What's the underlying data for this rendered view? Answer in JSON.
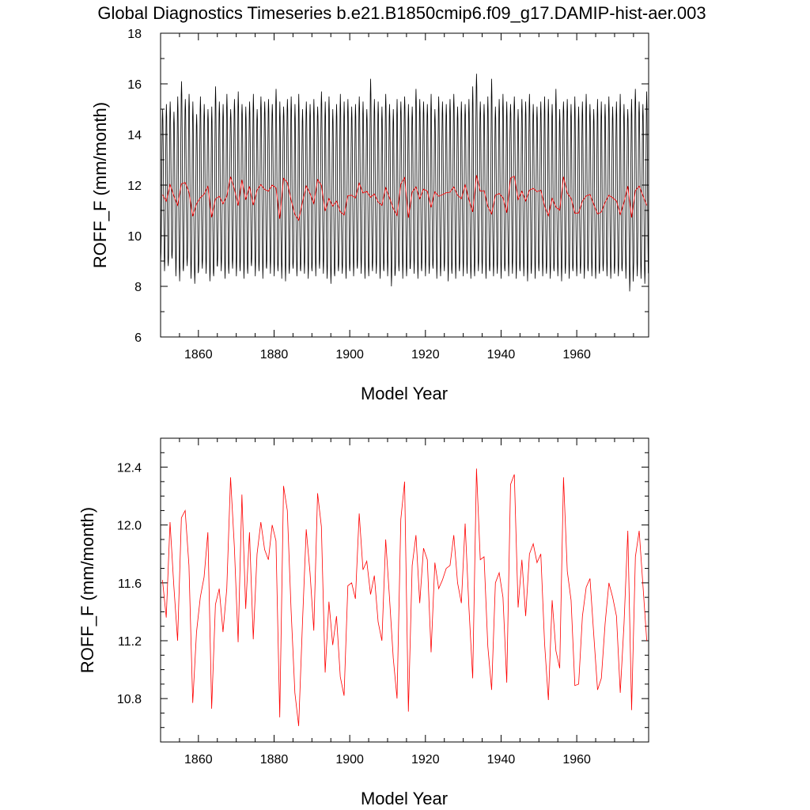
{
  "page": {
    "title": "Global Diagnostics Timeseries b.e21.B1850cmip6.f09_g17.DAMIP-hist-aer.003"
  },
  "colors": {
    "monthly_line": "#000000",
    "annual_line": "#ff0000",
    "background": "#ffffff"
  },
  "chart_data": [
    {
      "type": "line",
      "title": "Global Diagnostics Timeseries b.e21.B1850cmip6.f09_g17.DAMIP-hist-aer.003",
      "xlabel": "Model Year",
      "ylabel": "ROFF_F (mm/month)",
      "xlim": [
        1850,
        1979
      ],
      "ylim": [
        6,
        18
      ],
      "x_ticks": [
        "1860",
        "1880",
        "1900",
        "1920",
        "1940",
        "1960"
      ],
      "y_ticks": [
        "6",
        "8",
        "10",
        "12",
        "14",
        "16",
        "18"
      ],
      "grid": false,
      "legend": "none",
      "series": [
        {
          "style": "monthly seasonal cycle",
          "color": "#000000",
          "x_start": 1850.04,
          "x_step": 0.0833,
          "annual_peak": [
            15.0,
            15.2,
            15.3,
            14.9,
            15.5,
            16.1,
            15.4,
            15.6,
            15.3,
            14.8,
            15.5,
            15.2,
            15.0,
            15.1,
            15.9,
            15.3,
            15.2,
            15.6,
            15.0,
            15.4,
            15.7,
            15.2,
            15.1,
            15.3,
            15.6,
            15.0,
            15.5,
            15.3,
            15.4,
            15.2,
            15.8,
            15.3,
            15.1,
            15.4,
            15.5,
            15.2,
            15.6,
            15.0,
            15.3,
            15.2,
            15.4,
            15.1,
            15.7,
            15.3,
            15.5,
            15.0,
            15.2,
            15.6,
            15.3,
            15.4,
            15.1,
            15.2,
            15.5,
            15.3,
            15.0,
            16.2,
            15.4,
            15.3,
            15.1,
            15.6,
            15.2,
            15.0,
            15.4,
            15.3,
            15.5,
            15.2,
            15.1,
            15.8,
            15.4,
            15.3,
            15.2,
            15.6,
            15.0,
            15.5,
            15.3,
            15.2,
            15.4,
            15.6,
            15.1,
            15.3,
            15.2,
            15.4,
            15.9,
            16.4,
            15.3,
            15.2,
            15.5,
            16.2,
            15.1,
            15.4,
            15.6,
            15.3,
            15.2,
            15.5,
            15.0,
            15.4,
            15.3,
            15.6,
            15.2,
            15.1,
            15.3,
            15.5,
            15.4,
            15.2,
            15.8,
            15.0,
            15.3,
            15.4,
            15.2,
            15.5,
            15.1,
            15.3,
            15.6,
            15.2,
            15.0,
            15.4,
            15.3,
            15.2,
            15.5,
            15.1,
            15.3,
            15.6,
            15.2,
            15.0,
            15.4,
            15.8,
            15.3,
            15.2,
            15.7
          ],
          "annual_trough": [
            9.0,
            8.6,
            8.8,
            9.1,
            8.4,
            8.2,
            8.6,
            8.8,
            8.3,
            8.1,
            8.6,
            8.7,
            8.5,
            8.2,
            8.4,
            8.8,
            8.6,
            8.3,
            8.5,
            8.7,
            8.4,
            8.6,
            8.3,
            8.5,
            8.8,
            8.4,
            8.6,
            8.3,
            8.7,
            8.5,
            8.4,
            8.6,
            8.3,
            8.2,
            8.5,
            8.7,
            8.4,
            8.6,
            8.5,
            8.3,
            8.6,
            8.4,
            8.7,
            8.5,
            8.3,
            8.1,
            8.4,
            8.6,
            8.5,
            8.3,
            8.6,
            8.4,
            8.7,
            8.5,
            8.3,
            8.4,
            8.6,
            8.5,
            8.3,
            8.6,
            8.4,
            8.0,
            8.5,
            8.6,
            8.3,
            8.4,
            8.7,
            8.5,
            8.3,
            8.6,
            8.4,
            8.5,
            8.7,
            8.3,
            8.4,
            8.6,
            8.2,
            8.5,
            8.3,
            8.6,
            8.4,
            8.5,
            8.3,
            8.4,
            8.6,
            8.5,
            8.3,
            8.6,
            8.4,
            8.5,
            8.3,
            8.6,
            8.4,
            8.5,
            8.3,
            8.6,
            8.4,
            8.2,
            8.5,
            8.3,
            8.6,
            8.4,
            8.5,
            8.3,
            8.6,
            8.4,
            8.2,
            8.5,
            8.3,
            8.6,
            8.4,
            8.5,
            8.3,
            8.6,
            8.4,
            8.3,
            8.5,
            8.6,
            8.4,
            8.3,
            8.5,
            8.4,
            8.6,
            8.3,
            7.8,
            8.5,
            8.4,
            8.3,
            8.1
          ]
        },
        {
          "style": "annual mean",
          "color": "#ff0000",
          "x_start": 1850,
          "values": [
            11.62,
            11.36,
            12.02,
            11.58,
            11.2,
            12.05,
            12.1,
            11.72,
            10.77,
            11.26,
            11.5,
            11.64,
            11.95,
            10.73,
            11.45,
            11.56,
            11.26,
            11.56,
            12.33,
            11.85,
            11.19,
            12.21,
            11.42,
            11.95,
            11.21,
            11.8,
            12.02,
            11.83,
            11.76,
            12.0,
            11.89,
            10.67,
            12.27,
            12.1,
            11.41,
            10.84,
            10.61,
            11.32,
            11.97,
            11.67,
            11.27,
            12.22,
            11.99,
            10.98,
            11.47,
            11.17,
            11.37,
            10.95,
            10.82,
            11.58,
            11.6,
            11.49,
            12.08,
            11.69,
            11.75,
            11.52,
            11.65,
            11.33,
            11.2,
            11.9,
            11.5,
            11.08,
            10.8,
            12.04,
            12.3,
            10.71,
            11.72,
            11.93,
            11.46,
            11.84,
            11.76,
            11.12,
            11.74,
            11.56,
            11.62,
            11.7,
            11.72,
            11.93,
            11.6,
            11.46,
            12.01,
            11.43,
            10.94,
            12.39,
            11.76,
            11.78,
            11.16,
            10.86,
            11.6,
            11.67,
            11.5,
            10.91,
            12.28,
            12.35,
            11.43,
            11.76,
            11.37,
            11.8,
            11.87,
            11.74,
            11.8,
            11.18,
            10.79,
            11.48,
            11.13,
            11.01,
            12.33,
            11.68,
            11.48,
            10.89,
            10.9,
            11.37,
            11.57,
            11.63,
            11.24,
            10.86,
            10.94,
            11.32,
            11.6,
            11.5,
            11.37,
            10.84,
            11.32,
            11.96,
            10.72,
            11.78,
            11.96,
            11.58,
            11.2
          ]
        }
      ]
    },
    {
      "type": "line",
      "xlabel": "Model Year",
      "ylabel": "ROFF_F (mm/month)",
      "xlim": [
        1850,
        1979
      ],
      "ylim": [
        10.5,
        12.6
      ],
      "x_ticks": [
        "1860",
        "1880",
        "1900",
        "1920",
        "1940",
        "1960"
      ],
      "y_ticks": [
        "10.8",
        "11.2",
        "11.6",
        "12.0",
        "12.4"
      ],
      "grid": false,
      "legend": "none",
      "series": [
        {
          "style": "annual mean",
          "color": "#ff0000",
          "x_start": 1850,
          "values_ref": "same as top panel annual mean"
        }
      ]
    }
  ]
}
